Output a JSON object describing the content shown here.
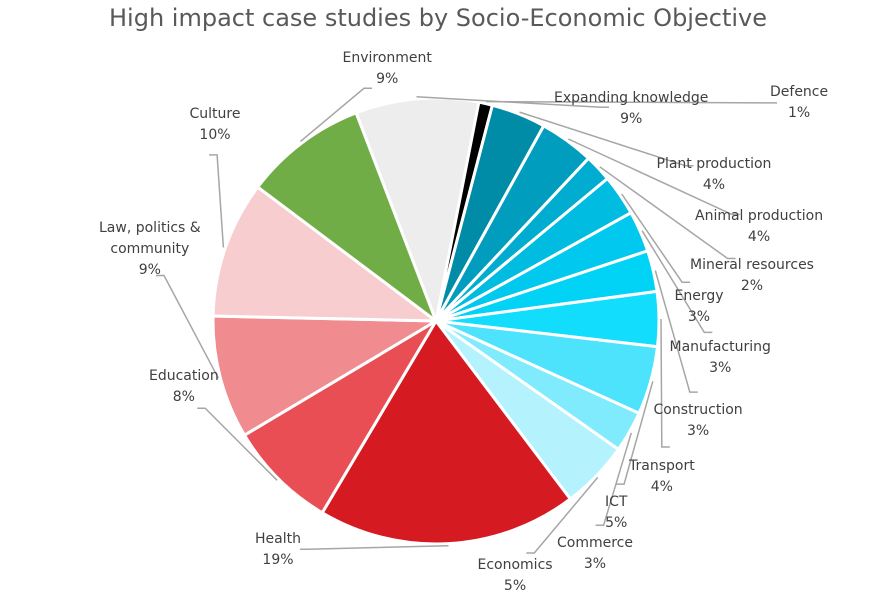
{
  "chart_data": {
    "type": "pie",
    "title": "High impact case studies by Socio-Economic Objective",
    "slices": [
      {
        "name": "Expanding knowledge",
        "value": 9,
        "label": "9%",
        "color": "#EDEDED"
      },
      {
        "name": "Defence",
        "value": 1,
        "label": "1%",
        "color": "#000000"
      },
      {
        "name": "Plant production",
        "value": 4,
        "label": "4%",
        "color": "#008BA6"
      },
      {
        "name": "Animal production",
        "value": 4,
        "label": "4%",
        "color": "#009DBE"
      },
      {
        "name": "Mineral resources",
        "value": 2,
        "label": "2%",
        "color": "#00ACCF"
      },
      {
        "name": "Energy",
        "value": 3,
        "label": "3%",
        "color": "#00BCE0"
      },
      {
        "name": "Manufacturing",
        "value": 3,
        "label": "3%",
        "color": "#00C8EE"
      },
      {
        "name": "Construction",
        "value": 3,
        "label": "3%",
        "color": "#00D3F6"
      },
      {
        "name": "Transport",
        "value": 4,
        "label": "4%",
        "color": "#13DDFC"
      },
      {
        "name": "ICT",
        "value": 5,
        "label": "5%",
        "color": "#4DE3FC"
      },
      {
        "name": "Commerce",
        "value": 3,
        "label": "3%",
        "color": "#7FEBFD"
      },
      {
        "name": "Economics",
        "value": 5,
        "label": "5%",
        "color": "#B4F3FE"
      },
      {
        "name": "Health",
        "value": 19,
        "label": "19%",
        "color": "#D61A22"
      },
      {
        "name": "Education",
        "value": 8,
        "label": "8%",
        "color": "#E84E54"
      },
      {
        "name": "Law, politics & community",
        "value": 9,
        "label": "9%",
        "color": "#F08B8F",
        "name_lines": [
          "Law, politics &",
          "community"
        ]
      },
      {
        "name": "Culture",
        "value": 10,
        "label": "10%",
        "color": "#F8CDD0"
      },
      {
        "name": "Environment",
        "value": 9,
        "label": "9%",
        "color": "#70AD47"
      }
    ]
  }
}
